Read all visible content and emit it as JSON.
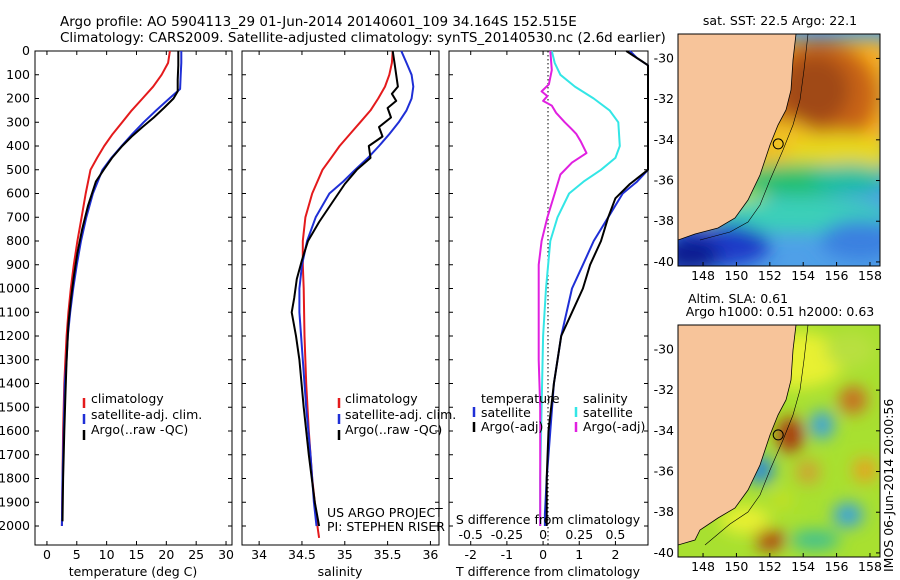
{
  "header": {
    "line1": "Argo profile: AO 5904113_29 01-Jun-2014 20140601_109 34.164S 152.515E",
    "line2": "Climatology: CARS2009. Satellite-adjusted climatology: synTS_20140530.nc (2.6d earlier)"
  },
  "credit": {
    "line1": "US ARGO PROJECT",
    "line2": "PI: STEPHEN RISER"
  },
  "stamp": "IMOS 06-Jun-2014 20:00:56",
  "colors": {
    "red": "#e41a1c",
    "blue": "#1f2fd6",
    "black": "#000000",
    "cyan": "#33e6e6",
    "magenta": "#e020e0"
  },
  "chart_data": [
    {
      "type": "line",
      "xlabel": "temperature (deg C)",
      "xticks": [
        "0",
        "5",
        "10",
        "15",
        "20",
        "25",
        "30"
      ],
      "yticks": [
        "0",
        "100",
        "200",
        "300",
        "400",
        "500",
        "600",
        "700",
        "800",
        "900",
        "1000",
        "1100",
        "1200",
        "1300",
        "1400",
        "1500",
        "1600",
        "1700",
        "1800",
        "1900",
        "2000"
      ],
      "xlim": [
        -2,
        31
      ],
      "ylim": [
        2080,
        0
      ],
      "legend": [
        "climatology",
        "satellite-adj. clim.",
        "Argo(..raw -QC)"
      ],
      "series": [
        {
          "name": "climatology",
          "color": "#e41a1c",
          "x": [
            20.6,
            20.3,
            19.2,
            17.8,
            16.0,
            14.2,
            12.6,
            11.0,
            9.6,
            8.4,
            7.3,
            6.5,
            5.8,
            5.1,
            4.5,
            4.0,
            3.6,
            3.3,
            3.1,
            2.9,
            2.7,
            2.6,
            2.5
          ],
          "y": [
            0,
            50,
            100,
            150,
            200,
            250,
            300,
            350,
            400,
            450,
            500,
            600,
            700,
            800,
            900,
            1000,
            1100,
            1200,
            1300,
            1400,
            1600,
            1800,
            2000
          ]
        },
        {
          "name": "satellite-adj. clim.",
          "color": "#1f2fd6",
          "x": [
            22.5,
            22.5,
            22.4,
            22.3,
            20.5,
            18.3,
            16.2,
            14.3,
            12.5,
            10.8,
            9.3,
            7.7,
            6.6,
            5.7,
            5.0,
            4.4,
            3.9,
            3.5,
            3.3,
            3.0,
            2.8,
            2.6,
            2.5
          ],
          "y": [
            0,
            50,
            100,
            160,
            200,
            250,
            300,
            350,
            400,
            450,
            500,
            600,
            700,
            800,
            900,
            1000,
            1100,
            1200,
            1300,
            1400,
            1600,
            1800,
            2000
          ]
        },
        {
          "name": "Argo(..raw -QC)",
          "color": "#000000",
          "x": [
            22.0,
            22.0,
            21.9,
            21.9,
            21.2,
            19.6,
            17.9,
            16.0,
            14.2,
            12.6,
            10.9,
            9.5,
            8.2,
            6.9,
            5.9,
            5.1,
            4.5,
            4.0,
            3.6,
            3.3,
            3.1,
            2.9,
            2.7,
            2.6
          ],
          "y": [
            0,
            60,
            120,
            170,
            200,
            240,
            280,
            320,
            360,
            400,
            450,
            500,
            550,
            650,
            750,
            850,
            950,
            1050,
            1150,
            1300,
            1450,
            1600,
            1800,
            1980
          ]
        }
      ]
    },
    {
      "type": "line",
      "xlabel": "salinity",
      "xticks": [
        "34",
        "34.5",
        "35",
        "35.5",
        "36"
      ],
      "xlim": [
        33.8,
        36.1
      ],
      "ylim": [
        2080,
        0
      ],
      "legend": [
        "climatology",
        "satellite-adj. clim.",
        "Argo(..raw -QC)"
      ],
      "series": [
        {
          "name": "climatology",
          "color": "#e41a1c",
          "x": [
            35.56,
            35.55,
            35.52,
            35.47,
            35.39,
            35.3,
            35.18,
            35.06,
            34.94,
            34.84,
            34.74,
            34.62,
            34.54,
            34.51,
            34.51,
            34.52,
            34.53,
            34.55,
            34.58,
            34.62,
            34.65,
            34.68,
            34.7
          ],
          "y": [
            0,
            50,
            100,
            150,
            200,
            250,
            300,
            350,
            400,
            450,
            500,
            600,
            700,
            800,
            900,
            1000,
            1200,
            1400,
            1600,
            1800,
            1900,
            2000,
            2050
          ]
        },
        {
          "name": "satellite-adj. clim.",
          "color": "#1f2fd6",
          "x": [
            35.66,
            35.72,
            35.78,
            35.8,
            35.78,
            35.72,
            35.63,
            35.52,
            35.4,
            35.27,
            35.12,
            34.98,
            34.82,
            34.66,
            34.56,
            34.5,
            34.47,
            34.47,
            34.49,
            34.51,
            34.55,
            34.6,
            34.64,
            34.67
          ],
          "y": [
            0,
            50,
            100,
            150,
            200,
            250,
            300,
            350,
            400,
            450,
            500,
            550,
            600,
            700,
            800,
            900,
            1000,
            1100,
            1200,
            1300,
            1500,
            1700,
            1900,
            2000
          ]
        },
        {
          "name": "Argo(..raw -QC)",
          "color": "#000000",
          "x": [
            35.56,
            35.58,
            35.6,
            35.62,
            35.55,
            35.6,
            35.5,
            35.54,
            35.4,
            35.44,
            35.28,
            35.3,
            35.14,
            35.0,
            34.85,
            34.7,
            34.57,
            34.5,
            34.44,
            34.41,
            34.38,
            34.43,
            34.47,
            34.52,
            34.58,
            34.65,
            34.7
          ],
          "y": [
            0,
            50,
            100,
            150,
            180,
            210,
            240,
            280,
            320,
            360,
            400,
            450,
            500,
            560,
            640,
            720,
            800,
            880,
            960,
            1040,
            1100,
            1200,
            1300,
            1500,
            1700,
            1900,
            2000
          ]
        }
      ]
    },
    {
      "type": "line",
      "xlabel": "T difference from climatology",
      "xlabel2": "S difference from climatology",
      "xticks": [
        "-2",
        "-1",
        "0",
        "1",
        "2"
      ],
      "xticks2": [
        "-0.5",
        "-0.25",
        "0",
        "0.25",
        "0.5"
      ],
      "xlim": [
        -2.6,
        2.9
      ],
      "ylim": [
        2080,
        0
      ],
      "legend_titles": [
        "temperature",
        "salinity"
      ],
      "legend": [
        "satellite",
        "Argo(-adj)",
        "satellite",
        "Argo(-adj)"
      ],
      "series": [
        {
          "name": "satellite",
          "color": "#1f2fd6",
          "x": [
            2.4,
            2.6,
            2.9,
            3.2,
            3.3,
            3.0,
            2.6,
            2.2,
            1.8,
            1.4,
            1.1,
            0.8,
            0.5,
            0.3,
            0.2,
            0.1,
            0.05,
            0.05
          ],
          "y": [
            0,
            30,
            60,
            100,
            400,
            500,
            550,
            600,
            700,
            800,
            900,
            1000,
            1200,
            1400,
            1600,
            1800,
            1950,
            2000
          ]
        },
        {
          "name": "Argo(-adj)",
          "color": "#000000",
          "x": [
            2.3,
            2.5,
            2.7,
            2.9,
            3.0,
            3.0,
            2.4,
            2.0,
            1.8,
            1.6,
            1.3,
            1.1,
            0.8,
            0.5,
            0.3,
            0.15,
            0.1,
            0.1
          ],
          "y": [
            0,
            20,
            40,
            60,
            100,
            500,
            560,
            620,
            700,
            800,
            900,
            1000,
            1100,
            1200,
            1400,
            1600,
            1800,
            2000
          ]
        },
        {
          "name": "satellite",
          "color": "#33e6e6",
          "x": [
            0.06,
            0.08,
            0.12,
            0.22,
            0.35,
            0.46,
            0.52,
            0.53,
            0.5,
            0.4,
            0.28,
            0.18,
            0.1,
            0.05,
            0.02,
            0.0,
            -0.01,
            -0.02,
            -0.02
          ],
          "y": [
            0,
            50,
            100,
            150,
            200,
            250,
            300,
            400,
            450,
            500,
            550,
            600,
            700,
            800,
            1000,
            1200,
            1500,
            1800,
            2000
          ]
        },
        {
          "name": "Argo(-adj)",
          "color": "#e020e0",
          "x": [
            0.05,
            0.06,
            0.04,
            -0.01,
            0.03,
            0.0,
            0.06,
            0.09,
            0.15,
            0.2,
            0.23,
            0.26,
            0.3,
            0.2,
            0.12,
            0.08,
            0.03,
            -0.01,
            -0.03,
            -0.03,
            -0.03,
            -0.02,
            -0.02,
            -0.02
          ],
          "y": [
            0,
            80,
            140,
            170,
            190,
            210,
            230,
            260,
            300,
            330,
            350,
            380,
            430,
            470,
            520,
            600,
            700,
            800,
            900,
            1100,
            1300,
            1500,
            1800,
            2000
          ]
        }
      ]
    },
    {
      "type": "heatmap",
      "title": "sat. SST: 22.5 Argo: 22.1",
      "xticks": [
        "148",
        "150",
        "152",
        "154",
        "156",
        "158"
      ],
      "yticks": [
        "-30",
        "-32",
        "-34",
        "-36",
        "-38",
        "-40"
      ],
      "xlim": [
        146.5,
        158.6
      ],
      "ylim": [
        -40.2,
        -28.8
      ],
      "marker": {
        "lon": 152.5,
        "lat": -34.2
      }
    },
    {
      "type": "heatmap",
      "title": "Altim. SLA: 0.61",
      "subtitle": "Argo h1000: 0.51 h2000: 0.63",
      "xticks": [
        "148",
        "150",
        "152",
        "154",
        "156",
        "158"
      ],
      "yticks": [
        "-30",
        "-32",
        "-34",
        "-36",
        "-38",
        "-40"
      ],
      "xlim": [
        146.5,
        158.6
      ],
      "ylim": [
        -40.2,
        -28.8
      ],
      "marker": {
        "lon": 152.5,
        "lat": -34.2
      }
    }
  ]
}
